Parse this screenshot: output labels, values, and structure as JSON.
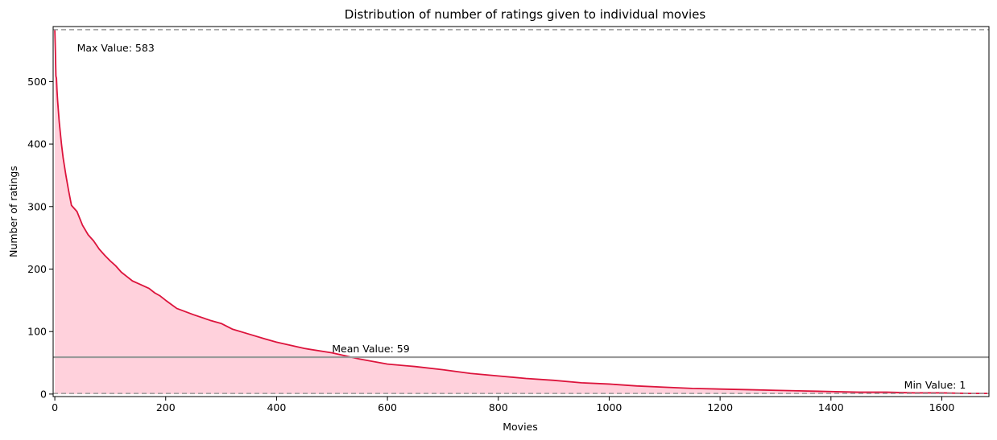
{
  "chart_data": {
    "type": "area",
    "title": "Distribution of number of ratings given to individual movies",
    "xlabel": "Movies",
    "ylabel": "Number of ratings",
    "xlim": [
      -3,
      1685
    ],
    "ylim": [
      -4,
      588
    ],
    "xticks": [
      0,
      200,
      400,
      600,
      800,
      1000,
      1200,
      1400,
      1600
    ],
    "yticks": [
      0,
      100,
      200,
      300,
      400,
      500
    ],
    "grid": false,
    "colors": {
      "line": "#dc143c",
      "fill": "#ffd1dc",
      "reference": "#999999"
    },
    "series": [
      {
        "x": [
          0,
          1,
          2,
          3,
          4,
          5,
          8,
          12,
          15,
          20,
          25,
          30,
          40,
          50,
          60,
          70,
          80,
          90,
          100,
          110,
          120,
          130,
          140,
          150,
          160,
          170,
          180,
          190,
          200,
          220,
          250,
          280,
          300,
          320,
          350,
          380,
          400,
          450,
          500,
          550,
          600,
          650,
          700,
          750,
          800,
          850,
          900,
          950,
          1000,
          1050,
          1100,
          1150,
          1200,
          1250,
          1300,
          1350,
          1400,
          1450,
          1500,
          1550,
          1600,
          1650,
          1682
        ],
        "values": [
          583,
          550,
          509,
          505,
          485,
          470,
          435,
          400,
          378,
          350,
          325,
          302,
          292,
          270,
          255,
          245,
          232,
          222,
          213,
          205,
          195,
          188,
          181,
          177,
          173,
          169,
          162,
          157,
          150,
          137,
          127,
          118,
          113,
          104,
          96,
          88,
          83,
          73,
          66,
          56,
          48,
          44,
          39,
          33,
          29,
          25,
          22,
          18,
          16,
          13,
          11,
          9,
          8,
          7,
          6,
          5,
          4,
          3,
          3,
          2,
          2,
          1,
          1
        ]
      }
    ],
    "reference_lines": [
      {
        "value": 583,
        "style": "dashed",
        "label": "Max Value: 583",
        "label_x": 40,
        "label_y": 553
      },
      {
        "value": 59,
        "style": "solid",
        "label": "Mean Value: 59",
        "label_x": 500,
        "label_y": 72
      },
      {
        "value": 1,
        "style": "dashed",
        "label": "Min Value: 1",
        "label_x": 1532,
        "label_y": 14
      }
    ]
  }
}
